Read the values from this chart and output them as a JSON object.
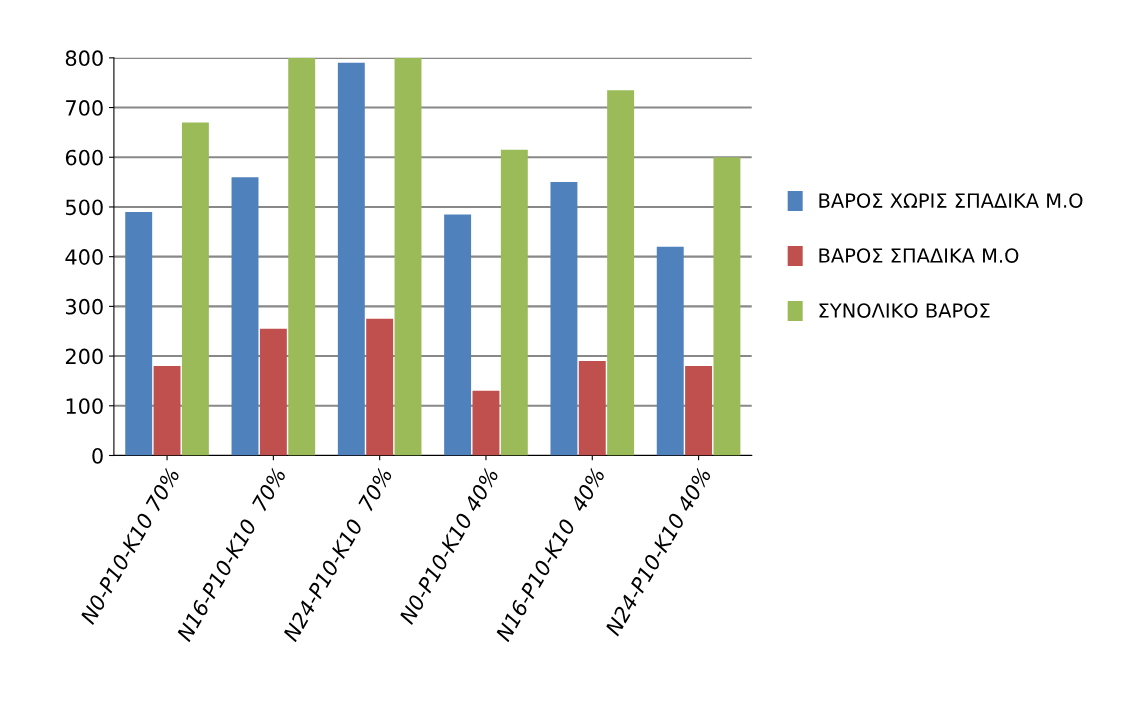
{
  "chart_data": {
    "type": "bar",
    "categories": [
      "N0-P10-K10 70%",
      "N16-P10-K10  70%",
      "N24-P10-K10  70%",
      "N0-P10-K10 40%",
      "N16-P10-K10  40%",
      "N24-P10-K10 40%"
    ],
    "series": [
      {
        "name": "ΒΑΡΟΣ ΧΩΡΙΣ ΣΠΑΔΙΚΑ Μ.Ο",
        "color": "#4f81bd",
        "values": [
          490,
          560,
          790,
          485,
          550,
          420
        ]
      },
      {
        "name": "ΒΑΡΟΣ ΣΠΑΔΙΚΑ Μ.Ο",
        "color": "#c0504d",
        "values": [
          180,
          255,
          275,
          130,
          190,
          180
        ]
      },
      {
        "name": "ΣΥΝΟΛΙΚΟ ΒΑΡΟΣ",
        "color": "#9bbb59",
        "values": [
          670,
          800,
          800,
          615,
          735,
          600
        ]
      }
    ],
    "ylim": [
      0,
      800
    ],
    "yticks": [
      0,
      100,
      200,
      300,
      400,
      500,
      600,
      700,
      800
    ],
    "grid": "y",
    "legend": "right"
  }
}
